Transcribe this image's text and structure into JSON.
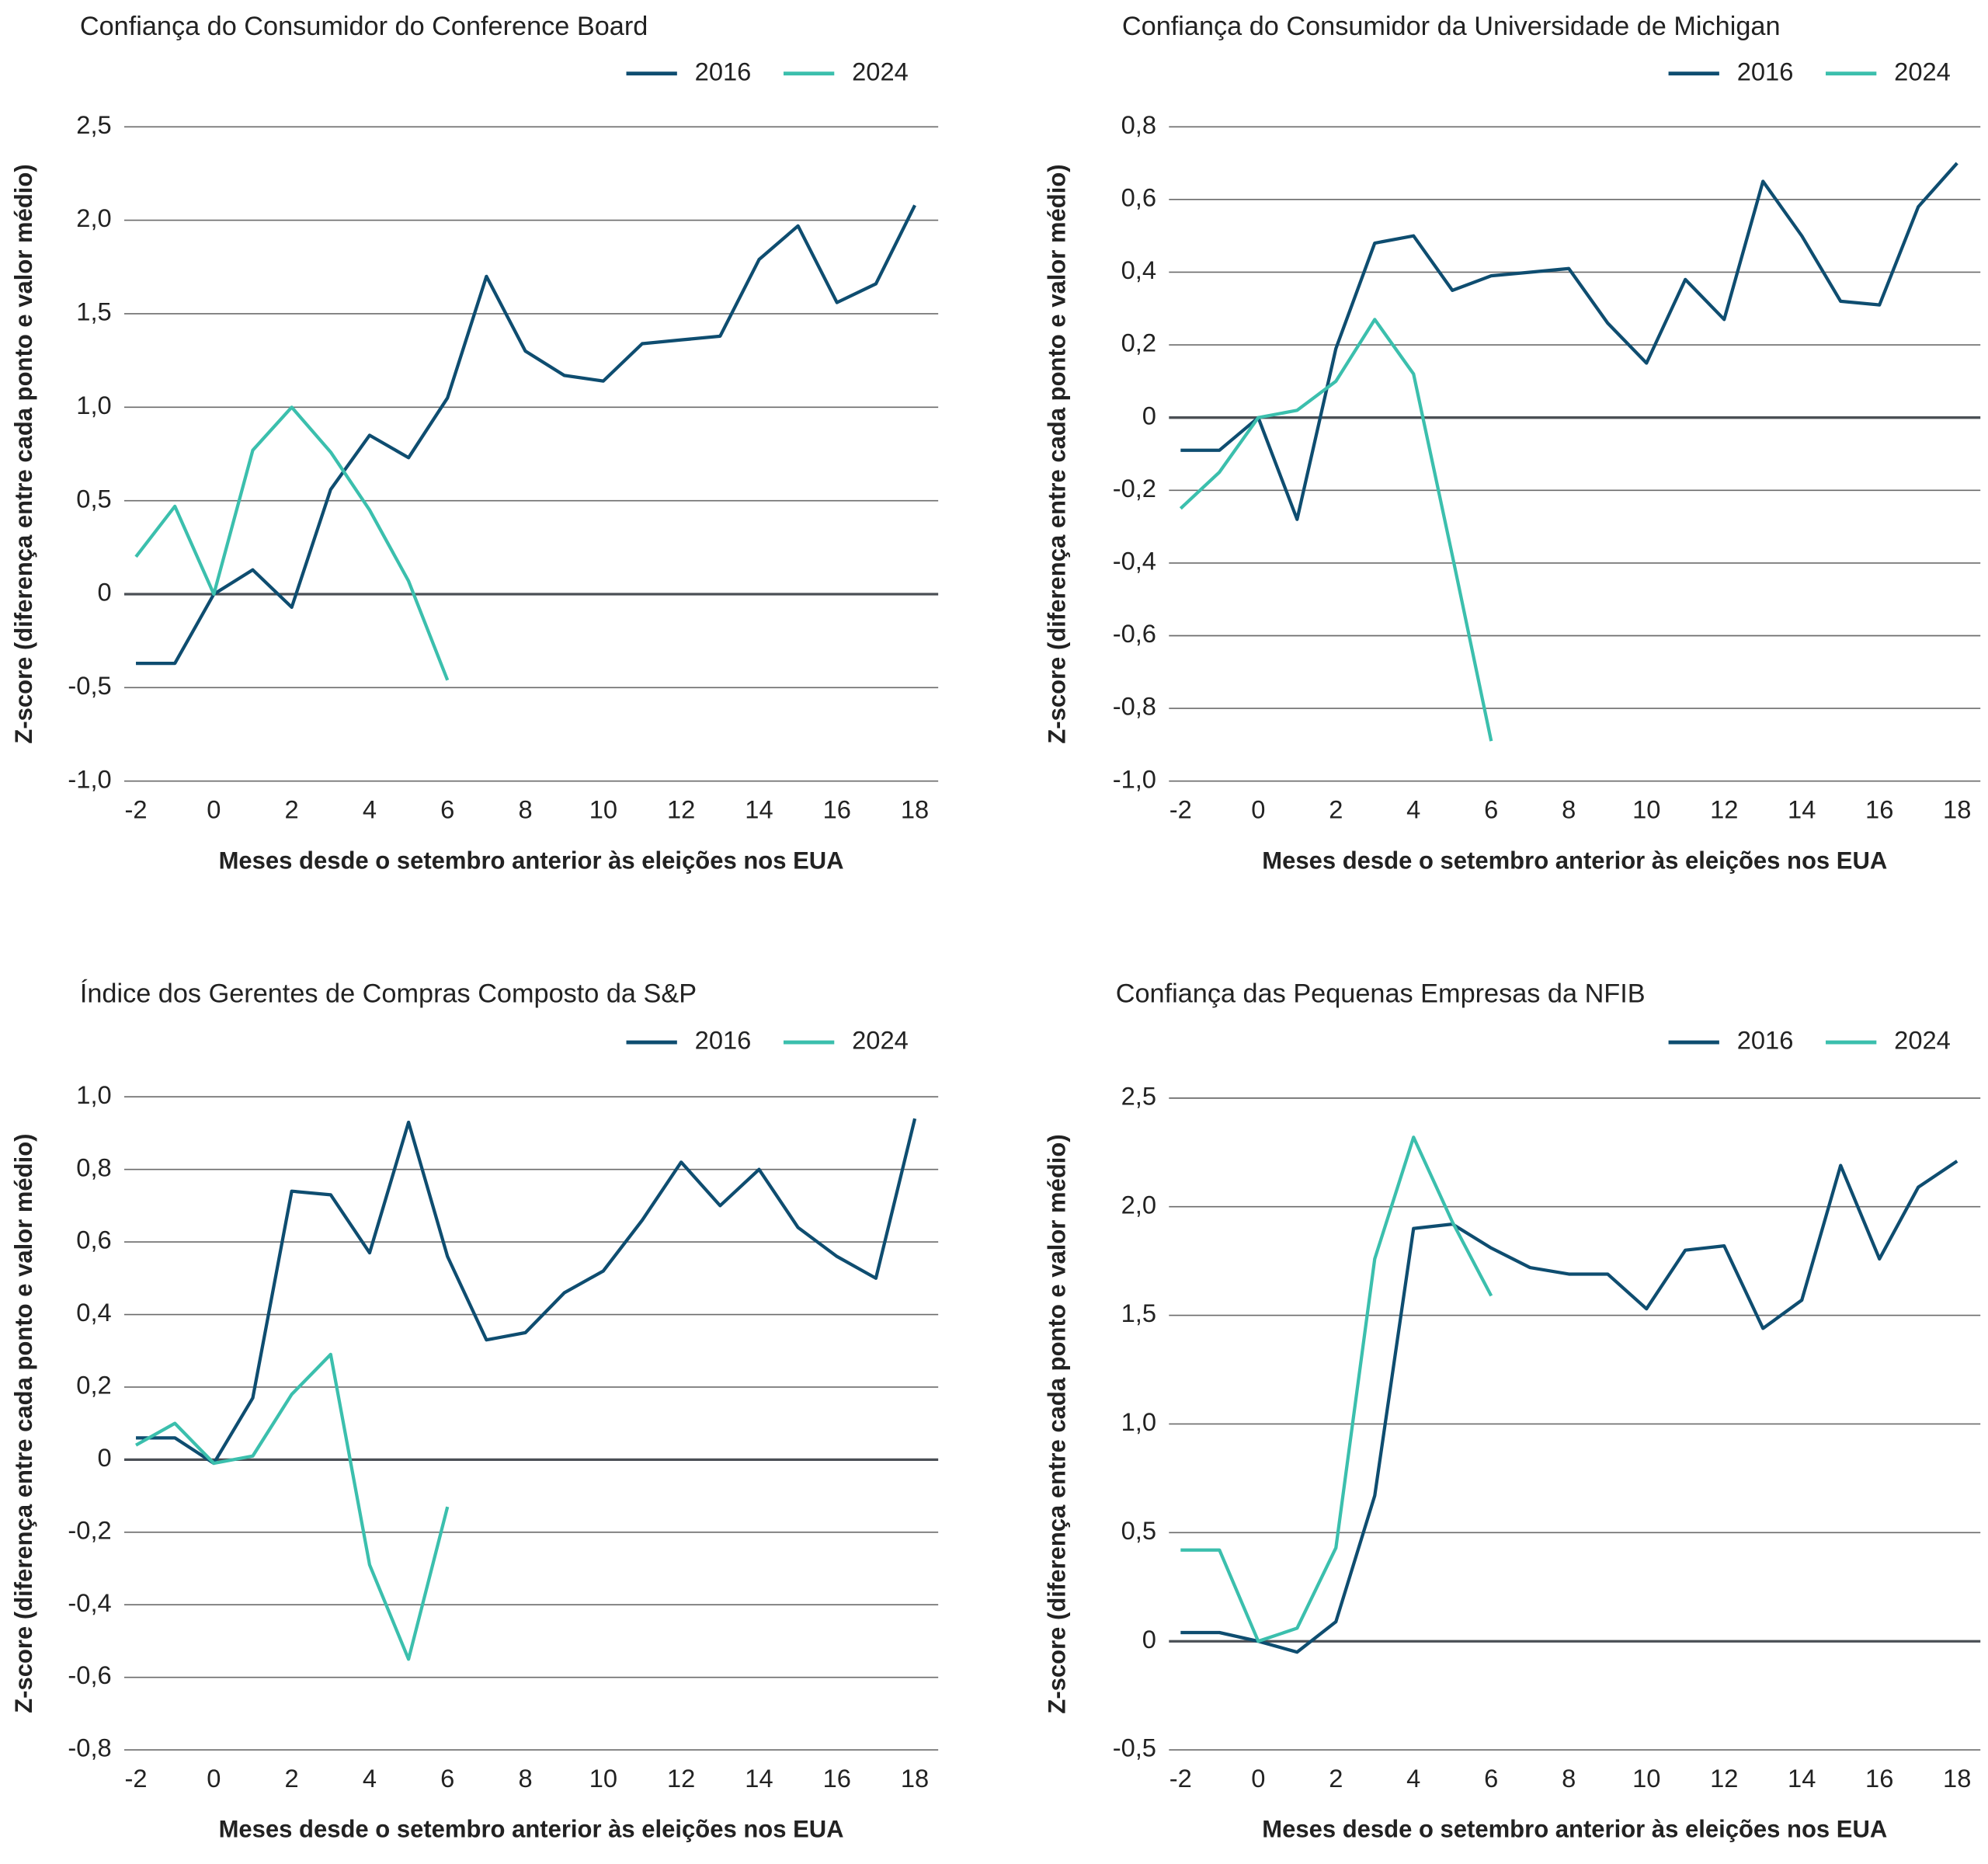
{
  "chart_data": [
    {
      "type": "line",
      "title": "Confiança do Consumidor do Conference Board",
      "x_label": "Meses desde o setembro anterior às eleições nos EUA",
      "y_label": "Z-score (diferença entre cada ponto e valor médio)",
      "x": [
        -2,
        -1,
        0,
        1,
        2,
        3,
        4,
        5,
        6,
        7,
        8,
        9,
        10,
        11,
        12,
        13,
        14,
        15,
        16,
        17,
        18
      ],
      "series": [
        {
          "name": "2016",
          "color": "#0e4d70",
          "values": [
            -0.37,
            -0.37,
            0,
            0.13,
            -0.07,
            0.56,
            0.85,
            0.73,
            1.05,
            1.7,
            1.3,
            1.17,
            1.14,
            1.34,
            1.36,
            1.38,
            1.79,
            1.97,
            1.56,
            1.66,
            2.08
          ]
        },
        {
          "name": "2024",
          "color": "#3bbfad",
          "values": [
            0.2,
            0.47,
            0,
            0.77,
            1.0,
            0.76,
            0.45,
            0.07,
            -0.46,
            null,
            null,
            null,
            null,
            null,
            null,
            null,
            null,
            null,
            null,
            null,
            null
          ]
        }
      ],
      "xlim": [
        -2.3,
        18.6
      ],
      "xticks": [
        -2,
        0,
        2,
        4,
        6,
        8,
        10,
        12,
        14,
        16,
        18
      ],
      "ylim": [
        -1.0,
        2.5
      ],
      "yticks": [
        {
          "value": -1.0,
          "label": "-1,0"
        },
        {
          "value": -0.5,
          "label": "-0,5"
        },
        0,
        {
          "value": 0.5,
          "label": "0,5"
        },
        {
          "value": 1.0,
          "label": "1,0"
        },
        {
          "value": 1.5,
          "label": "1,5"
        },
        {
          "value": 2.0,
          "label": "2,0"
        },
        {
          "value": 2.5,
          "label": "2,5"
        }
      ],
      "grid": true,
      "legend": "top-right"
    },
    {
      "type": "line",
      "title": "Confiança do Consumidor da Universidade de Michigan",
      "x_label": "Meses desde o setembro anterior às eleições nos EUA",
      "y_label": "Z-score (diferença entre cada ponto e valor médio)",
      "x": [
        -2,
        -1,
        0,
        1,
        2,
        3,
        4,
        5,
        6,
        7,
        8,
        9,
        10,
        11,
        12,
        13,
        14,
        15,
        16,
        17,
        18
      ],
      "series": [
        {
          "name": "2016",
          "color": "#0e4d70",
          "values": [
            -0.09,
            -0.09,
            0,
            -0.28,
            0.19,
            0.48,
            0.5,
            0.35,
            0.39,
            0.4,
            0.41,
            0.26,
            0.15,
            0.38,
            0.27,
            0.65,
            0.5,
            0.32,
            0.31,
            0.58,
            0.7
          ]
        },
        {
          "name": "2024",
          "color": "#3bbfad",
          "values": [
            -0.25,
            -0.15,
            0,
            0.02,
            0.1,
            0.27,
            0.12,
            -0.38,
            -0.89,
            null,
            null,
            null,
            null,
            null,
            null,
            null,
            null,
            null,
            null,
            null,
            null
          ]
        }
      ],
      "xlim": [
        -2.3,
        18.6
      ],
      "xticks": [
        -2,
        0,
        2,
        4,
        6,
        8,
        10,
        12,
        14,
        16,
        18
      ],
      "ylim": [
        -1.0,
        0.8
      ],
      "yticks": [
        {
          "value": -1.0,
          "label": "-1,0"
        },
        {
          "value": -0.8,
          "label": "-0,8"
        },
        {
          "value": -0.6,
          "label": "-0,6"
        },
        {
          "value": -0.4,
          "label": "-0,4"
        },
        {
          "value": -0.2,
          "label": "-0,2"
        },
        0,
        {
          "value": 0.2,
          "label": "0,2"
        },
        {
          "value": 0.4,
          "label": "0,4"
        },
        {
          "value": 0.6,
          "label": "0,6"
        },
        {
          "value": 0.8,
          "label": "0,8"
        }
      ],
      "grid": true,
      "legend": "top-right"
    },
    {
      "type": "line",
      "title": "Índice dos Gerentes de Compras Composto da S&P",
      "x_label": "Meses desde o setembro anterior às eleições nos EUA",
      "y_label": "Z-score (diferença entre cada ponto e valor médio)",
      "x": [
        -2,
        -1,
        0,
        1,
        2,
        3,
        4,
        5,
        6,
        7,
        8,
        9,
        10,
        11,
        12,
        13,
        14,
        15,
        16,
        17,
        18
      ],
      "series": [
        {
          "name": "2016",
          "color": "#0e4d70",
          "values": [
            0.06,
            0.06,
            -0.01,
            0.17,
            0.74,
            0.73,
            0.57,
            0.93,
            0.56,
            0.33,
            0.35,
            0.46,
            0.52,
            0.66,
            0.82,
            0.7,
            0.8,
            0.64,
            0.56,
            0.5,
            0.94
          ]
        },
        {
          "name": "2024",
          "color": "#3bbfad",
          "values": [
            0.04,
            0.1,
            -0.01,
            0.01,
            0.18,
            0.29,
            -0.29,
            -0.55,
            -0.13,
            null,
            null,
            null,
            null,
            null,
            null,
            null,
            null,
            null,
            null,
            null,
            null
          ]
        }
      ],
      "xlim": [
        -2.3,
        18.6
      ],
      "xticks": [
        -2,
        0,
        2,
        4,
        6,
        8,
        10,
        12,
        14,
        16,
        18
      ],
      "ylim": [
        -0.8,
        1.0
      ],
      "yticks": [
        {
          "value": -0.8,
          "label": "-0,8"
        },
        {
          "value": -0.6,
          "label": "-0,6"
        },
        {
          "value": -0.4,
          "label": "-0,4"
        },
        {
          "value": -0.2,
          "label": "-0,2"
        },
        0,
        {
          "value": 0.2,
          "label": "0,2"
        },
        {
          "value": 0.4,
          "label": "0,4"
        },
        {
          "value": 0.6,
          "label": "0,6"
        },
        {
          "value": 0.8,
          "label": "0,8"
        },
        {
          "value": 1.0,
          "label": "1,0"
        }
      ],
      "grid": true,
      "legend": "top-right"
    },
    {
      "type": "line",
      "title": "Confiança das Pequenas Empresas da NFIB",
      "x_label": "Meses desde o setembro anterior às eleições nos EUA",
      "y_label": "Z-score (diferença entre cada ponto e valor médio)",
      "x": [
        -2,
        -1,
        0,
        1,
        2,
        3,
        4,
        5,
        6,
        7,
        8,
        9,
        10,
        11,
        12,
        13,
        14,
        15,
        16,
        17,
        18
      ],
      "series": [
        {
          "name": "2016",
          "color": "#0e4d70",
          "values": [
            0.04,
            0.04,
            0,
            -0.05,
            0.09,
            0.67,
            1.9,
            1.92,
            1.81,
            1.72,
            1.69,
            1.69,
            1.53,
            1.8,
            1.82,
            1.44,
            1.57,
            2.19,
            1.76,
            2.09,
            2.21
          ]
        },
        {
          "name": "2024",
          "color": "#3bbfad",
          "values": [
            0.42,
            0.42,
            0,
            0.06,
            0.43,
            1.76,
            2.32,
            1.93,
            1.59,
            null,
            null,
            null,
            null,
            null,
            null,
            null,
            null,
            null,
            null,
            null,
            null
          ]
        }
      ],
      "xlim": [
        -2.3,
        18.6
      ],
      "xticks": [
        -2,
        0,
        2,
        4,
        6,
        8,
        10,
        12,
        14,
        16,
        18
      ],
      "ylim": [
        -0.5,
        2.5
      ],
      "yticks": [
        {
          "value": -0.5,
          "label": "-0,5"
        },
        0,
        {
          "value": 0.5,
          "label": "0,5"
        },
        {
          "value": 1.0,
          "label": "1,0"
        },
        {
          "value": 1.5,
          "label": "1,5"
        },
        {
          "value": 2.0,
          "label": "2,0"
        },
        {
          "value": 2.5,
          "label": "2,5"
        }
      ],
      "grid": true,
      "legend": "top-right"
    }
  ]
}
